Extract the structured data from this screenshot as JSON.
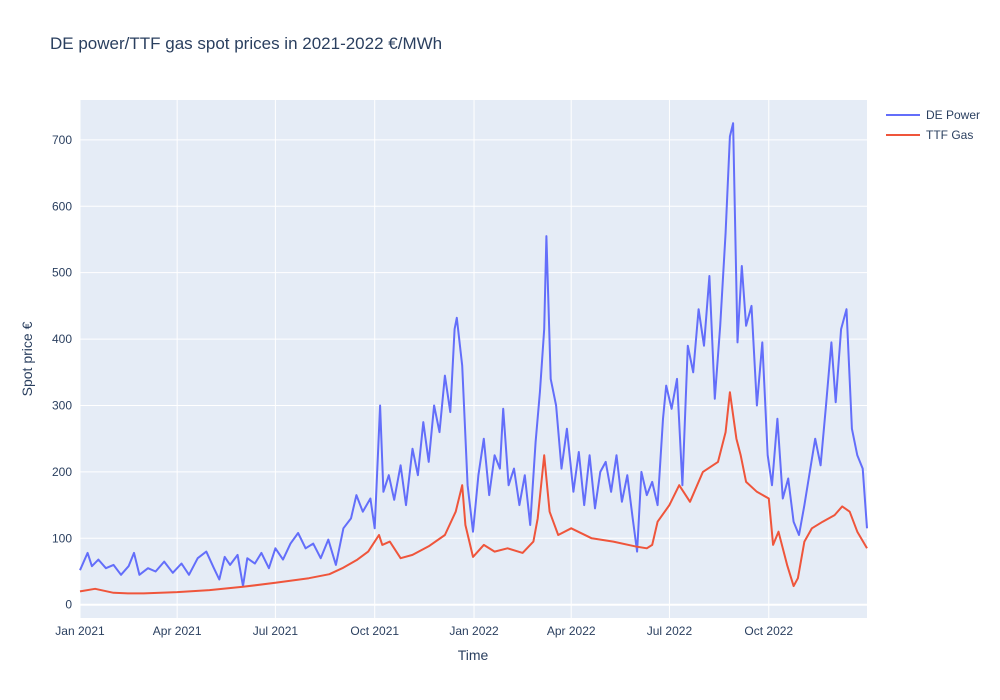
{
  "chart_data": {
    "type": "line",
    "title": "DE power/TTF gas spot prices in 2021-2022 €/MWh",
    "xlabel": "Time",
    "ylabel": "Spot price €",
    "x_range": [
      "2021-01-01",
      "2022-12-31"
    ],
    "ylim": [
      -20,
      760
    ],
    "x_ticks": [
      {
        "date": "2021-01-01",
        "label": "Jan 2021"
      },
      {
        "date": "2021-04-01",
        "label": "Apr 2021"
      },
      {
        "date": "2021-07-01",
        "label": "Jul 2021"
      },
      {
        "date": "2021-10-01",
        "label": "Oct 2021"
      },
      {
        "date": "2022-01-01",
        "label": "Jan 2022"
      },
      {
        "date": "2022-04-01",
        "label": "Apr 2022"
      },
      {
        "date": "2022-07-01",
        "label": "Jul 2022"
      },
      {
        "date": "2022-10-01",
        "label": "Oct 2022"
      }
    ],
    "y_ticks": [
      0,
      100,
      200,
      300,
      400,
      500,
      600,
      700
    ],
    "grid": true,
    "legend_position": "top-right",
    "series": [
      {
        "name": "DE Power",
        "color": "#636efa",
        "points": [
          [
            "2021-01-01",
            52
          ],
          [
            "2021-01-08",
            78
          ],
          [
            "2021-01-12",
            58
          ],
          [
            "2021-01-18",
            68
          ],
          [
            "2021-01-25",
            55
          ],
          [
            "2021-02-01",
            60
          ],
          [
            "2021-02-08",
            45
          ],
          [
            "2021-02-15",
            58
          ],
          [
            "2021-02-20",
            78
          ],
          [
            "2021-02-25",
            45
          ],
          [
            "2021-03-05",
            55
          ],
          [
            "2021-03-12",
            50
          ],
          [
            "2021-03-20",
            65
          ],
          [
            "2021-03-28",
            48
          ],
          [
            "2021-04-05",
            62
          ],
          [
            "2021-04-12",
            45
          ],
          [
            "2021-04-20",
            70
          ],
          [
            "2021-04-28",
            80
          ],
          [
            "2021-05-05",
            55
          ],
          [
            "2021-05-10",
            38
          ],
          [
            "2021-05-15",
            72
          ],
          [
            "2021-05-20",
            60
          ],
          [
            "2021-05-27",
            75
          ],
          [
            "2021-06-01",
            28
          ],
          [
            "2021-06-05",
            70
          ],
          [
            "2021-06-12",
            62
          ],
          [
            "2021-06-18",
            78
          ],
          [
            "2021-06-25",
            55
          ],
          [
            "2021-07-01",
            85
          ],
          [
            "2021-07-08",
            68
          ],
          [
            "2021-07-15",
            92
          ],
          [
            "2021-07-22",
            108
          ],
          [
            "2021-07-29",
            85
          ],
          [
            "2021-08-05",
            92
          ],
          [
            "2021-08-12",
            70
          ],
          [
            "2021-08-19",
            98
          ],
          [
            "2021-08-26",
            60
          ],
          [
            "2021-09-02",
            115
          ],
          [
            "2021-09-09",
            130
          ],
          [
            "2021-09-14",
            165
          ],
          [
            "2021-09-20",
            140
          ],
          [
            "2021-09-27",
            160
          ],
          [
            "2021-10-01",
            115
          ],
          [
            "2021-10-06",
            300
          ],
          [
            "2021-10-09",
            170
          ],
          [
            "2021-10-14",
            195
          ],
          [
            "2021-10-19",
            158
          ],
          [
            "2021-10-25",
            210
          ],
          [
            "2021-10-30",
            150
          ],
          [
            "2021-11-05",
            235
          ],
          [
            "2021-11-10",
            195
          ],
          [
            "2021-11-15",
            275
          ],
          [
            "2021-11-20",
            215
          ],
          [
            "2021-11-25",
            300
          ],
          [
            "2021-11-30",
            260
          ],
          [
            "2021-12-05",
            345
          ],
          [
            "2021-12-10",
            290
          ],
          [
            "2021-12-14",
            415
          ],
          [
            "2021-12-16",
            432
          ],
          [
            "2021-12-21",
            360
          ],
          [
            "2021-12-26",
            180
          ],
          [
            "2021-12-31",
            110
          ],
          [
            "2022-01-05",
            195
          ],
          [
            "2022-01-10",
            250
          ],
          [
            "2022-01-15",
            165
          ],
          [
            "2022-01-20",
            225
          ],
          [
            "2022-01-25",
            205
          ],
          [
            "2022-01-28",
            295
          ],
          [
            "2022-02-02",
            180
          ],
          [
            "2022-02-07",
            205
          ],
          [
            "2022-02-12",
            150
          ],
          [
            "2022-02-17",
            195
          ],
          [
            "2022-02-22",
            120
          ],
          [
            "2022-02-27",
            245
          ],
          [
            "2022-03-03",
            320
          ],
          [
            "2022-03-07",
            415
          ],
          [
            "2022-03-09",
            555
          ],
          [
            "2022-03-13",
            340
          ],
          [
            "2022-03-18",
            300
          ],
          [
            "2022-03-23",
            205
          ],
          [
            "2022-03-28",
            265
          ],
          [
            "2022-04-03",
            170
          ],
          [
            "2022-04-08",
            230
          ],
          [
            "2022-04-13",
            150
          ],
          [
            "2022-04-18",
            225
          ],
          [
            "2022-04-23",
            145
          ],
          [
            "2022-04-28",
            200
          ],
          [
            "2022-05-03",
            215
          ],
          [
            "2022-05-08",
            170
          ],
          [
            "2022-05-13",
            225
          ],
          [
            "2022-05-18",
            155
          ],
          [
            "2022-05-23",
            195
          ],
          [
            "2022-05-28",
            130
          ],
          [
            "2022-06-01",
            80
          ],
          [
            "2022-06-05",
            200
          ],
          [
            "2022-06-10",
            165
          ],
          [
            "2022-06-15",
            185
          ],
          [
            "2022-06-20",
            150
          ],
          [
            "2022-06-25",
            280
          ],
          [
            "2022-06-28",
            330
          ],
          [
            "2022-07-03",
            295
          ],
          [
            "2022-07-08",
            340
          ],
          [
            "2022-07-13",
            180
          ],
          [
            "2022-07-18",
            390
          ],
          [
            "2022-07-23",
            350
          ],
          [
            "2022-07-28",
            445
          ],
          [
            "2022-08-02",
            390
          ],
          [
            "2022-08-07",
            495
          ],
          [
            "2022-08-12",
            310
          ],
          [
            "2022-08-17",
            420
          ],
          [
            "2022-08-22",
            560
          ],
          [
            "2022-08-26",
            705
          ],
          [
            "2022-08-29",
            725
          ],
          [
            "2022-09-02",
            395
          ],
          [
            "2022-09-06",
            510
          ],
          [
            "2022-09-10",
            420
          ],
          [
            "2022-09-15",
            450
          ],
          [
            "2022-09-20",
            300
          ],
          [
            "2022-09-25",
            395
          ],
          [
            "2022-09-30",
            225
          ],
          [
            "2022-10-04",
            180
          ],
          [
            "2022-10-09",
            280
          ],
          [
            "2022-10-14",
            160
          ],
          [
            "2022-10-19",
            190
          ],
          [
            "2022-10-24",
            125
          ],
          [
            "2022-10-29",
            105
          ],
          [
            "2022-11-03",
            150
          ],
          [
            "2022-11-08",
            200
          ],
          [
            "2022-11-13",
            250
          ],
          [
            "2022-11-18",
            210
          ],
          [
            "2022-11-23",
            300
          ],
          [
            "2022-11-28",
            395
          ],
          [
            "2022-12-02",
            305
          ],
          [
            "2022-12-07",
            415
          ],
          [
            "2022-12-12",
            445
          ],
          [
            "2022-12-17",
            265
          ],
          [
            "2022-12-22",
            225
          ],
          [
            "2022-12-27",
            205
          ],
          [
            "2022-12-31",
            115
          ]
        ]
      },
      {
        "name": "TTF Gas",
        "color": "#ef553b",
        "points": [
          [
            "2021-01-01",
            20
          ],
          [
            "2021-01-15",
            24
          ],
          [
            "2021-02-01",
            18
          ],
          [
            "2021-02-15",
            17
          ],
          [
            "2021-03-01",
            17
          ],
          [
            "2021-04-01",
            19
          ],
          [
            "2021-05-01",
            22
          ],
          [
            "2021-06-01",
            27
          ],
          [
            "2021-07-01",
            33
          ],
          [
            "2021-08-01",
            40
          ],
          [
            "2021-08-20",
            46
          ],
          [
            "2021-09-01",
            55
          ],
          [
            "2021-09-15",
            68
          ],
          [
            "2021-09-25",
            80
          ],
          [
            "2021-10-05",
            105
          ],
          [
            "2021-10-08",
            90
          ],
          [
            "2021-10-15",
            95
          ],
          [
            "2021-10-25",
            70
          ],
          [
            "2021-11-05",
            75
          ],
          [
            "2021-11-20",
            88
          ],
          [
            "2021-12-05",
            105
          ],
          [
            "2021-12-15",
            140
          ],
          [
            "2021-12-21",
            180
          ],
          [
            "2021-12-24",
            120
          ],
          [
            "2021-12-31",
            72
          ],
          [
            "2022-01-10",
            90
          ],
          [
            "2022-01-20",
            80
          ],
          [
            "2022-02-01",
            85
          ],
          [
            "2022-02-15",
            78
          ],
          [
            "2022-02-25",
            95
          ],
          [
            "2022-03-01",
            130
          ],
          [
            "2022-03-07",
            225
          ],
          [
            "2022-03-12",
            140
          ],
          [
            "2022-03-20",
            105
          ],
          [
            "2022-04-01",
            115
          ],
          [
            "2022-04-20",
            100
          ],
          [
            "2022-05-10",
            95
          ],
          [
            "2022-05-30",
            88
          ],
          [
            "2022-06-10",
            85
          ],
          [
            "2022-06-15",
            90
          ],
          [
            "2022-06-20",
            125
          ],
          [
            "2022-07-01",
            150
          ],
          [
            "2022-07-10",
            180
          ],
          [
            "2022-07-20",
            155
          ],
          [
            "2022-08-01",
            200
          ],
          [
            "2022-08-15",
            215
          ],
          [
            "2022-08-22",
            260
          ],
          [
            "2022-08-26",
            320
          ],
          [
            "2022-09-01",
            250
          ],
          [
            "2022-09-05",
            225
          ],
          [
            "2022-09-10",
            185
          ],
          [
            "2022-09-20",
            170
          ],
          [
            "2022-10-01",
            160
          ],
          [
            "2022-10-05",
            90
          ],
          [
            "2022-10-10",
            110
          ],
          [
            "2022-10-18",
            60
          ],
          [
            "2022-10-24",
            28
          ],
          [
            "2022-10-28",
            40
          ],
          [
            "2022-11-03",
            95
          ],
          [
            "2022-11-10",
            115
          ],
          [
            "2022-11-20",
            125
          ],
          [
            "2022-12-01",
            135
          ],
          [
            "2022-12-08",
            148
          ],
          [
            "2022-12-15",
            140
          ],
          [
            "2022-12-22",
            110
          ],
          [
            "2022-12-31",
            85
          ]
        ]
      }
    ]
  }
}
